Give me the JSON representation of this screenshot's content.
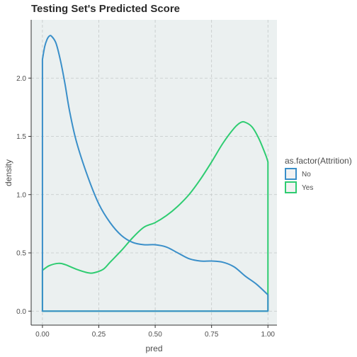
{
  "chart_data": {
    "type": "area",
    "title": "Testing Set's Predicted Score",
    "xlabel": "pred",
    "ylabel": "density",
    "xlim": [
      -0.05,
      1.04
    ],
    "ylim": [
      -0.12,
      2.5
    ],
    "x_ticks": [
      "0.00",
      "0.25",
      "0.50",
      "0.75",
      "1.00"
    ],
    "x_tick_values": [
      0.0,
      0.25,
      0.5,
      0.75,
      1.0
    ],
    "y_ticks": [
      "0.0",
      "0.5",
      "1.0",
      "1.5",
      "2.0"
    ],
    "y_tick_values": [
      0.0,
      0.5,
      1.0,
      1.5,
      2.0
    ],
    "grid": true,
    "legend_title": "as.factor(Attrition)",
    "legend_position": "right",
    "series": [
      {
        "name": "No",
        "color": "#3a8fc9",
        "x": [
          0.0,
          0.01,
          0.02,
          0.03,
          0.04,
          0.06,
          0.08,
          0.1,
          0.12,
          0.15,
          0.2,
          0.25,
          0.3,
          0.35,
          0.4,
          0.45,
          0.5,
          0.55,
          0.6,
          0.65,
          0.7,
          0.75,
          0.8,
          0.85,
          0.9,
          0.95,
          1.0
        ],
        "values": [
          2.16,
          2.27,
          2.33,
          2.36,
          2.36,
          2.3,
          2.15,
          1.95,
          1.72,
          1.46,
          1.16,
          0.92,
          0.76,
          0.65,
          0.59,
          0.57,
          0.57,
          0.55,
          0.5,
          0.45,
          0.43,
          0.43,
          0.42,
          0.38,
          0.3,
          0.23,
          0.14
        ]
      },
      {
        "name": "Yes",
        "color": "#2ecc71",
        "x": [
          0.0,
          0.03,
          0.07,
          0.1,
          0.15,
          0.2,
          0.23,
          0.27,
          0.3,
          0.35,
          0.4,
          0.45,
          0.5,
          0.55,
          0.6,
          0.65,
          0.7,
          0.75,
          0.8,
          0.85,
          0.88,
          0.9,
          0.93,
          0.96,
          0.99,
          1.0
        ],
        "values": [
          0.35,
          0.39,
          0.41,
          0.4,
          0.36,
          0.33,
          0.33,
          0.36,
          0.42,
          0.52,
          0.63,
          0.72,
          0.76,
          0.82,
          0.9,
          1.0,
          1.13,
          1.28,
          1.44,
          1.57,
          1.62,
          1.62,
          1.58,
          1.48,
          1.34,
          1.28
        ]
      }
    ]
  }
}
